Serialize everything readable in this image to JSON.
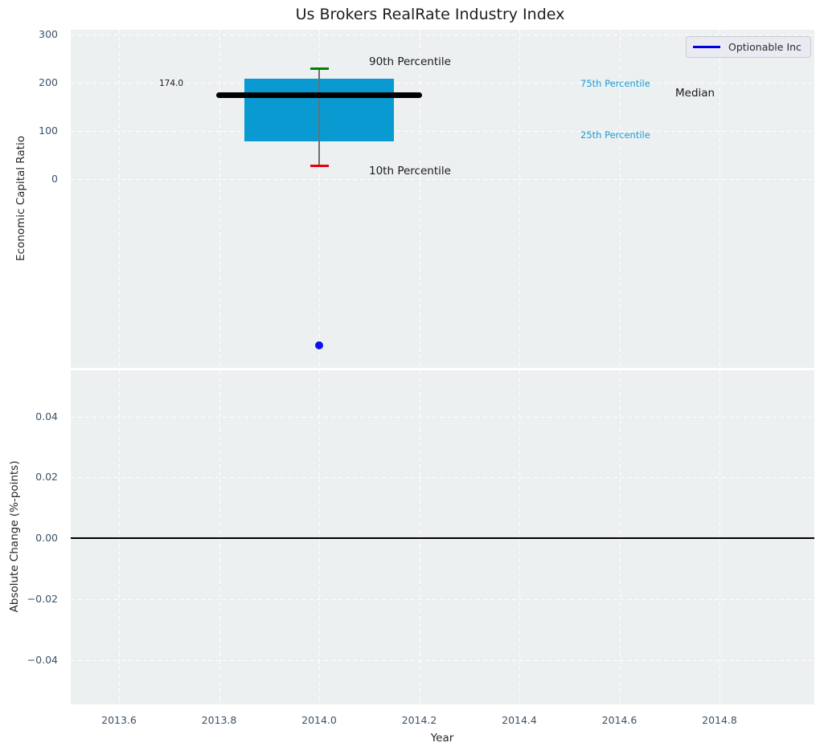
{
  "figure": {
    "title": "Us Brokers RealRate Industry Index",
    "xlabel": "Year"
  },
  "legend": {
    "label": "Optionable Inc",
    "line_color": "#0000dd"
  },
  "colors": {
    "plot_background": "#ecf0f1",
    "box_fill": "#0a9ad2",
    "median_line": "#000000",
    "cap_90th": "#008000",
    "cap_10th": "#e8000b",
    "whisker": "#6e6e6e",
    "scatter_dot": "#0d0dff",
    "percentile_text": "#1b9ed6",
    "tick_text": "#3d5166"
  },
  "chart_data": [
    {
      "type": "box",
      "subplot": "top",
      "title": "Us Brokers RealRate Industry Index",
      "ylabel": "Economic Capital Ratio",
      "ylim": [
        -390,
        310
      ],
      "grid": "dashed-white",
      "legend_position": "upper right",
      "yticks": [
        {
          "value": 300,
          "label": "300"
        },
        {
          "value": 200,
          "label": "200"
        },
        {
          "value": 100,
          "label": "100"
        },
        {
          "value": 0,
          "label": "0"
        }
      ],
      "box_stats": {
        "x": 2014.0,
        "box_half_width": 0.15,
        "median_line_half_width": 0.205,
        "p10": 28,
        "p25": 78,
        "median": 174,
        "p75": 208,
        "p90": 230
      },
      "median_value_label": "174.0",
      "annotations": {
        "p90": "90th Percentile",
        "p10": "10th Percentile",
        "p75": "75th Percentile",
        "p25": "25th Percentile",
        "median": "Median"
      },
      "series": [
        {
          "name": "Optionable Inc",
          "points": [
            {
              "x": 2014.0,
              "y": -345
            }
          ]
        }
      ]
    },
    {
      "type": "line",
      "subplot": "bottom",
      "ylabel": "Absolute Change (%-points)",
      "xlabel": "Year",
      "ylim": [
        -0.055,
        0.055
      ],
      "grid": "dashed-white",
      "zero_line": 0.0,
      "yticks": [
        {
          "value": 0.04,
          "label": "0.04"
        },
        {
          "value": 0.02,
          "label": "0.02"
        },
        {
          "value": 0.0,
          "label": "0.00"
        },
        {
          "value": -0.02,
          "label": "−0.02"
        },
        {
          "value": -0.04,
          "label": "−0.04"
        }
      ],
      "xticks": [
        {
          "value": 2013.6,
          "label": "2013.6"
        },
        {
          "value": 2013.8,
          "label": "2013.8"
        },
        {
          "value": 2014.0,
          "label": "2014.0"
        },
        {
          "value": 2014.2,
          "label": "2014.2"
        },
        {
          "value": 2014.4,
          "label": "2014.4"
        },
        {
          "value": 2014.6,
          "label": "2014.6"
        },
        {
          "value": 2014.8,
          "label": "2014.8"
        }
      ],
      "series": []
    }
  ]
}
